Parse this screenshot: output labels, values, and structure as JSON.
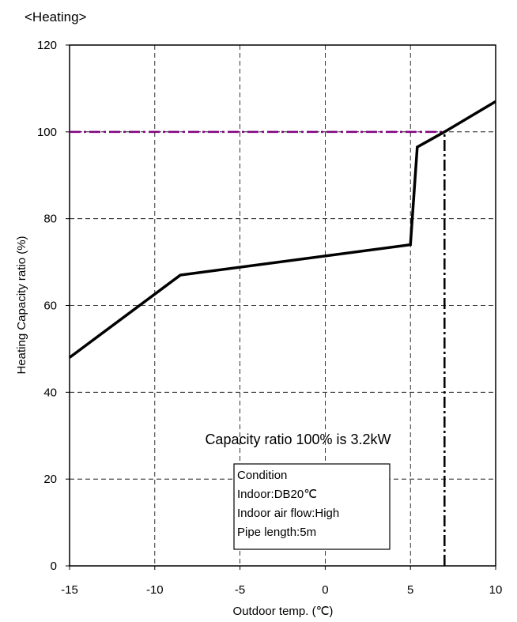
{
  "chart_data": {
    "type": "line",
    "title": "<Heating>",
    "xlabel": "Outdoor temp. (℃)",
    "ylabel": "Heating Capacity ratio (%)",
    "xlim": [
      -15,
      10
    ],
    "ylim": [
      0,
      120
    ],
    "xticks": [
      -15,
      -10,
      -5,
      0,
      5,
      10
    ],
    "xtick_labels": [
      "-15",
      "-10",
      "-5",
      "0",
      "5",
      "10"
    ],
    "yticks": [
      0,
      20,
      40,
      60,
      80,
      100,
      120
    ],
    "ytick_labels": [
      "0",
      "20",
      "40",
      "60",
      "80",
      "100",
      "120"
    ],
    "grid": true,
    "series": [
      {
        "x": [
          -15,
          -8.5,
          5,
          5.4,
          7,
          10
        ],
        "y": [
          48,
          67,
          74,
          96.5,
          100,
          107
        ],
        "color": "#000000",
        "style": "solid"
      }
    ],
    "reference_lines": [
      {
        "orientation": "horizontal",
        "y": 100,
        "x_from": -15,
        "x_to": 7,
        "color": "#800080",
        "style": "dash-dot"
      },
      {
        "orientation": "vertical",
        "x": 7,
        "y_from": 0,
        "y_to": 100,
        "color": "#000000",
        "style": "dash-dot"
      }
    ],
    "annotations": {
      "note": "Capacity ratio 100% is 3.2kW",
      "condition_lines": [
        "Condition",
        "Indoor:DB20℃",
        "Indoor air flow:High",
        "Pipe length:5m"
      ]
    }
  }
}
